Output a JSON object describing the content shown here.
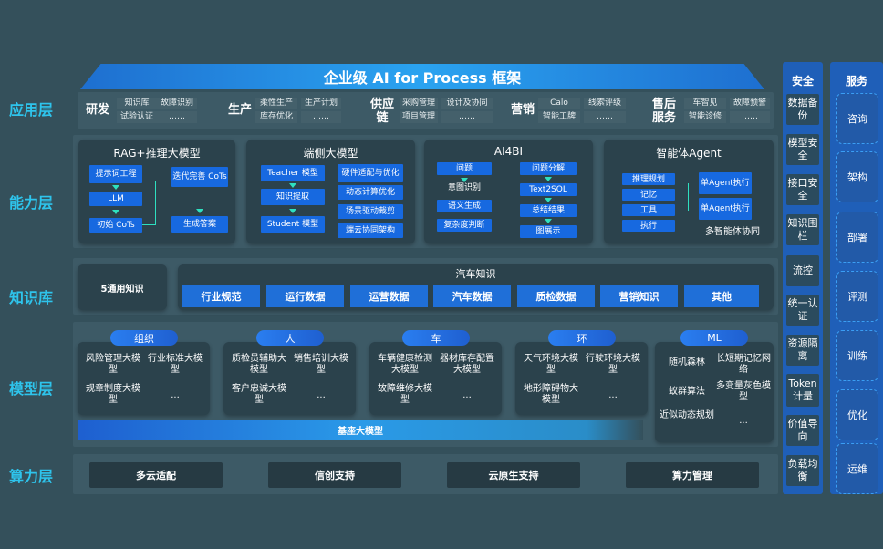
{
  "title": "企业级 AI for Process 框架",
  "rows": {
    "app": "应用层",
    "cap": "能力层",
    "kb": "知识库",
    "model": "模型层",
    "compute": "算力层"
  },
  "app_groups": [
    {
      "name": "研发",
      "items": [
        "知识库",
        "试验认证",
        "故障识别",
        "……"
      ]
    },
    {
      "name": "生产",
      "items": [
        "柔性生产",
        "库存优化",
        "生产计划",
        "……"
      ]
    },
    {
      "name": "供应链",
      "items": [
        "采购管理",
        "项目管理",
        "设计及协同",
        "……"
      ]
    },
    {
      "name": "营销",
      "items": [
        "Calo",
        "智能工牌",
        "线索评级",
        "……"
      ]
    },
    {
      "name": "售后服务",
      "items": [
        "车智见",
        "智能诊修",
        "故障预警",
        "……"
      ]
    }
  ],
  "capabilities": {
    "rag": {
      "title": "RAG+推理大模型",
      "prompt": "提示词工程",
      "llm": "LLM",
      "init": "初始 CoTs",
      "iter": "迭代完善 CoTs",
      "answer": "生成答案"
    },
    "edge": {
      "title": "端侧大模型",
      "teacher": "Teacher 模型",
      "distill": "知识提取",
      "student": "Student 模型",
      "items": [
        "硬件适配与优化",
        "动态计算优化",
        "场景驱动裁剪",
        "端云协同架构"
      ]
    },
    "ai4bi": {
      "title": "AI4BI",
      "q": "问题",
      "intent": "意图识别",
      "semantic": "语义生成",
      "complex": "复杂度判断",
      "decompose": "问题分解",
      "t2s": "Text2SQL",
      "summary": "总结结果",
      "show": "图展示"
    },
    "agent": {
      "title": "智能体Agent",
      "items": [
        "推理规划",
        "记忆",
        "工具",
        "执行"
      ],
      "single1": "单Agent执行",
      "single2": "单Agent执行",
      "multi": "多智能体协同"
    }
  },
  "knowledge": {
    "general": "5通用知识",
    "auto_title": "汽车知识",
    "items": [
      "行业规范",
      "运行数据",
      "运营数据",
      "汽车数据",
      "质检数据",
      "营销知识",
      "其他"
    ]
  },
  "models": [
    {
      "tag": "组织",
      "items": [
        "风险管理大模型",
        "行业标准大模型",
        "规章制度大模型",
        "..."
      ]
    },
    {
      "tag": "人",
      "items": [
        "质检员辅助大模型",
        "销售培训大模型",
        "客户忠诚大模型",
        "..."
      ]
    },
    {
      "tag": "车",
      "items": [
        "车辆健康检测大模型",
        "器材库存配置大模型",
        "故障维修大模型",
        "..."
      ]
    },
    {
      "tag": "环",
      "items": [
        "天气环境大模型",
        "行驶环境大模型",
        "地形障碍物大模型",
        "..."
      ]
    },
    {
      "tag": "ML",
      "items": [
        "随机森林",
        "长短期记忆网络",
        "蚁群算法",
        "多变量灰色模型",
        "近似动态规划",
        "..."
      ]
    }
  ],
  "base_model": "基座大模型",
  "compute": [
    "多云适配",
    "信创支持",
    "云原生支持",
    "算力管理"
  ],
  "security": {
    "title": "安全",
    "items": [
      "数据备份",
      "模型安全",
      "接口安全",
      "知识围栏",
      "流控",
      "统一认证",
      "资源隔离",
      "Token计量",
      "价值导向",
      "负载均衡"
    ]
  },
  "service": {
    "title": "服务",
    "items": [
      "咨询",
      "架构",
      "部署",
      "评测",
      "训练",
      "优化",
      "运维"
    ]
  }
}
